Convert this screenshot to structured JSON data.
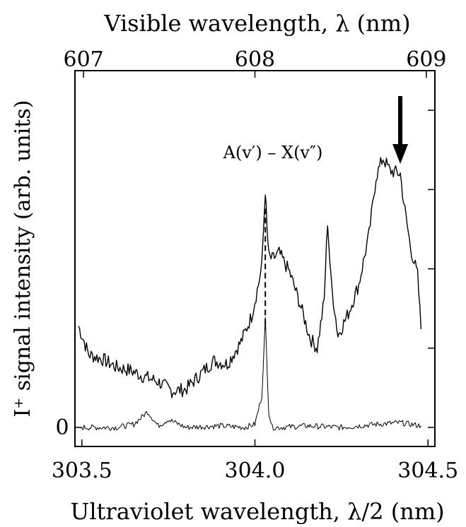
{
  "chart_data": {
    "type": "line",
    "top_axis": {
      "label": "Visible wavelength, λ (nm)",
      "ticks": [
        "607",
        "608",
        "609"
      ],
      "tick_values": [
        607,
        608,
        609
      ],
      "range": [
        606.95,
        609.05
      ]
    },
    "bottom_axis": {
      "label": "Ultraviolet wavelength, λ/2 (nm)",
      "ticks": [
        "303.5",
        "304.0",
        "304.5"
      ],
      "tick_values": [
        303.5,
        304.0,
        304.5
      ],
      "range": [
        303.48,
        304.52
      ]
    },
    "y_axis": {
      "label": "I⁺ signal intensity (arb. units)",
      "ticks": [
        "0"
      ],
      "tick_values": [
        0
      ],
      "range": [
        -0.12,
        2.25
      ],
      "grid": false
    },
    "annotation": "A(v′) – X(v″)",
    "arrow_at_x": 304.42,
    "series": [
      {
        "style": "solid",
        "x": [
          303.49,
          303.52,
          303.56,
          303.6,
          303.64,
          303.68,
          303.72,
          303.76,
          303.8,
          303.84,
          303.88,
          303.92,
          303.96,
          303.99,
          304.01,
          304.02,
          304.03,
          304.035,
          304.04,
          304.05,
          304.07,
          304.1,
          304.13,
          304.16,
          304.18,
          304.2,
          304.21,
          304.22,
          304.24,
          304.27,
          304.3,
          304.33,
          304.35,
          304.37,
          304.39,
          304.42,
          304.43,
          304.45,
          304.47,
          304.48
        ],
        "y": [
          0.64,
          0.46,
          0.43,
          0.38,
          0.36,
          0.32,
          0.29,
          0.23,
          0.24,
          0.33,
          0.42,
          0.4,
          0.54,
          0.7,
          0.9,
          1.02,
          1.5,
          1.25,
          1.08,
          1.06,
          1.1,
          0.98,
          0.78,
          0.56,
          0.5,
          0.8,
          1.3,
          0.92,
          0.58,
          0.72,
          0.9,
          1.22,
          1.58,
          1.7,
          1.62,
          1.6,
          1.42,
          1.13,
          0.96,
          0.62
        ]
      },
      {
        "style": "dashed",
        "x": [
          303.5,
          303.6,
          303.65,
          303.69,
          303.72,
          303.75,
          303.8,
          303.9,
          303.97,
          304.0,
          304.02,
          304.03,
          304.04,
          304.05,
          304.07,
          304.15,
          304.25,
          304.35,
          304.42,
          304.48
        ],
        "y": [
          0.0,
          0.0,
          0.02,
          0.1,
          0.01,
          0.05,
          0.0,
          0.01,
          0.0,
          0.02,
          0.2,
          0.68,
          0.1,
          0.0,
          0.0,
          0.01,
          0.0,
          0.02,
          0.03,
          0.01
        ]
      }
    ]
  }
}
